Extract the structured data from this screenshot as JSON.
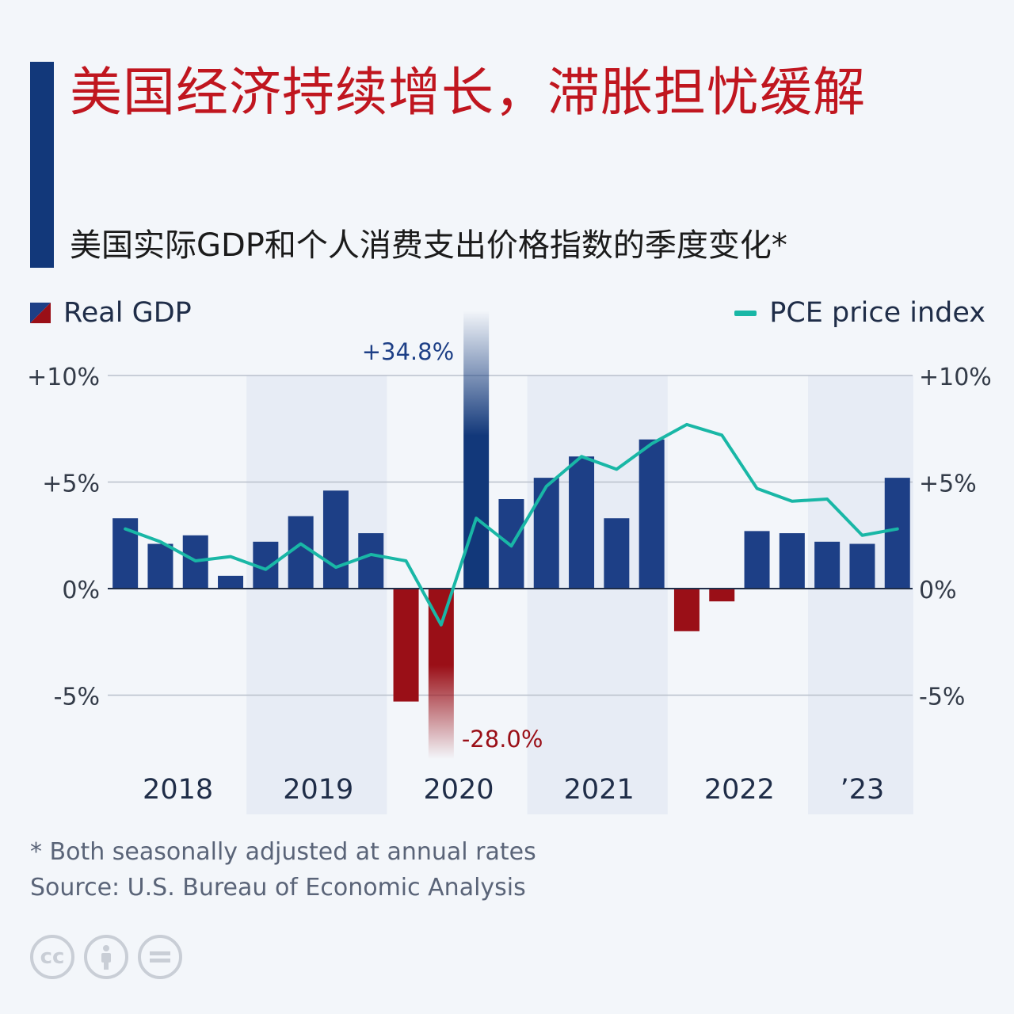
{
  "header": {
    "title": "美国经济持续增长，滞胀担忧缓解",
    "subtitle": "美国实际GDP和个人消费支出价格指数的季度变化*"
  },
  "legend": {
    "gdp_label": "Real GDP",
    "pce_label": "PCE price index"
  },
  "footer": {
    "footnote": "* Both seasonally adjusted at annual rates",
    "source": "Source: U.S. Bureau of Economic Analysis"
  },
  "colors": {
    "gdp_positive": "#1d3f86",
    "gdp_negative": "#9a0f17",
    "gdp_highlight": "#12387a",
    "pce_line": "#19b7a6",
    "title": "#c0161f",
    "band": "#e7ecf5"
  },
  "chart_data": {
    "type": "bar",
    "categories": [
      "2018 Q1",
      "2018 Q2",
      "2018 Q3",
      "2018 Q4",
      "2019 Q1",
      "2019 Q2",
      "2019 Q3",
      "2019 Q4",
      "2020 Q1",
      "2020 Q2",
      "2020 Q3",
      "2020 Q4",
      "2021 Q1",
      "2021 Q2",
      "2021 Q3",
      "2021 Q4",
      "2022 Q1",
      "2022 Q2",
      "2022 Q3",
      "2022 Q4",
      "2023 Q1",
      "2023 Q2",
      "2023 Q3"
    ],
    "year_labels": [
      "2018",
      "2019",
      "2020",
      "2021",
      "2022",
      "’23"
    ],
    "year_groups": [
      4,
      4,
      4,
      4,
      4,
      3
    ],
    "yticks_left": [
      "+10%",
      "+5%",
      "0%",
      "-5%"
    ],
    "yticks_right": [
      "+10%",
      "+5%",
      "0%",
      "-5%"
    ],
    "ytick_values": [
      10,
      5,
      0,
      -5
    ],
    "ylim": [
      -8,
      12.5
    ],
    "series": [
      {
        "name": "Real GDP",
        "type": "bar",
        "values": [
          3.3,
          2.1,
          2.5,
          0.6,
          2.2,
          3.4,
          4.6,
          2.6,
          -5.3,
          -28.0,
          34.8,
          4.2,
          5.2,
          6.2,
          3.3,
          7.0,
          -2.0,
          -0.6,
          2.7,
          2.6,
          2.2,
          2.1,
          5.2
        ]
      },
      {
        "name": "PCE price index",
        "type": "line",
        "values": [
          2.8,
          2.2,
          1.3,
          1.5,
          0.9,
          2.1,
          1.0,
          1.6,
          1.3,
          -1.7,
          3.3,
          2.0,
          4.8,
          6.2,
          5.6,
          6.8,
          7.7,
          7.2,
          4.7,
          4.1,
          4.2,
          2.5,
          2.8
        ]
      }
    ],
    "annotations": [
      {
        "text": "+34.8%",
        "index": 10
      },
      {
        "text": "-28.0%",
        "index": 9
      }
    ]
  }
}
